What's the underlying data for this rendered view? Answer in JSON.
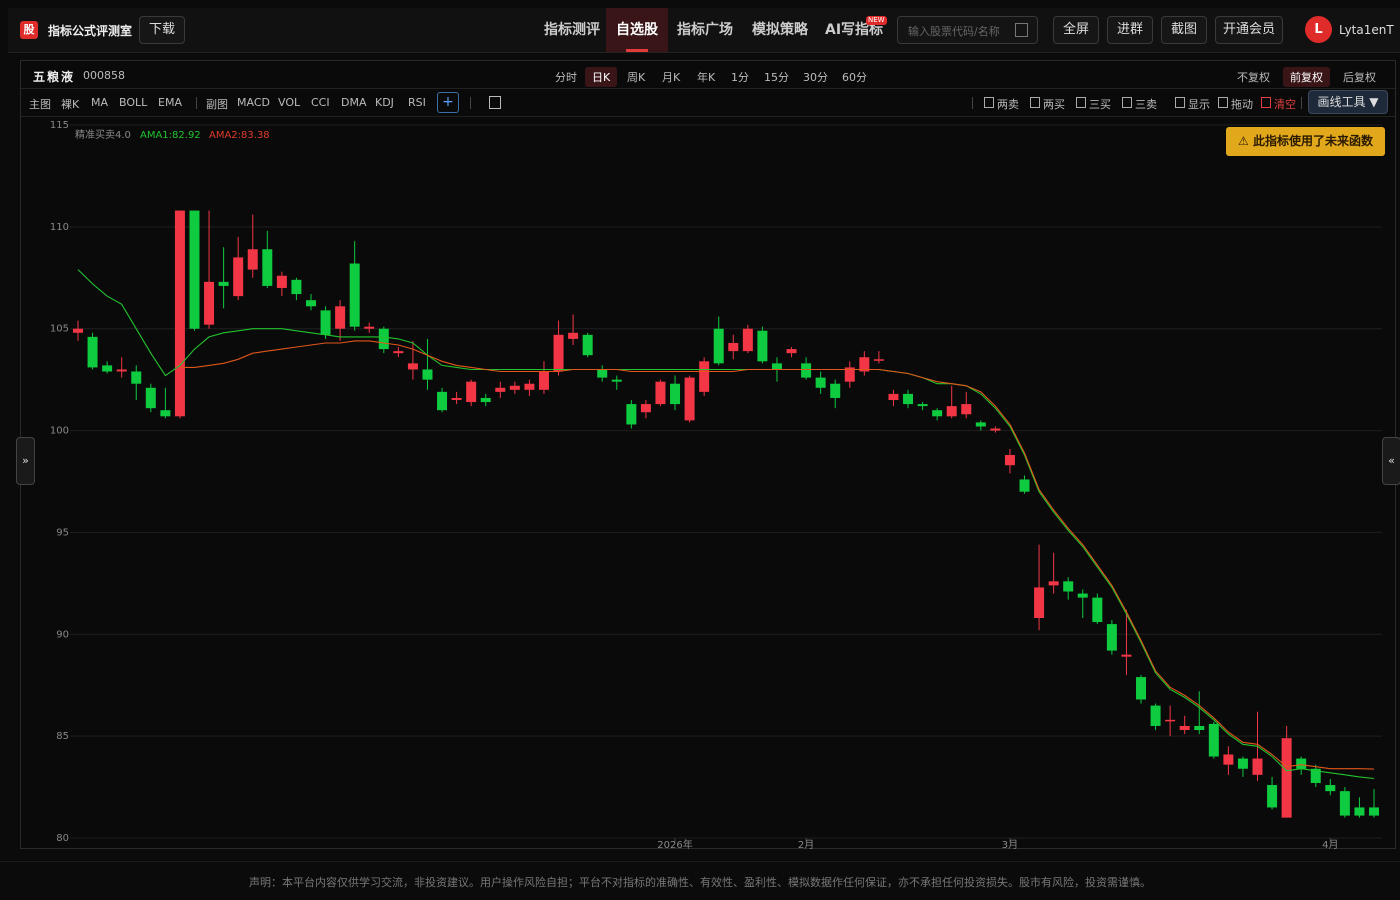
{
  "header": {
    "logo": "股",
    "title": "指标公式评测室",
    "download": "下载",
    "nav": [
      "指标测评",
      "自选股",
      "指标广场",
      "模拟策略",
      "AI写指标"
    ],
    "active_nav": 1,
    "badge": "NEW",
    "search_placeholder": "输入股票代码/名称",
    "buttons": [
      "全屏",
      "进群",
      "截图",
      "开通会员"
    ],
    "avatar": "L",
    "username": "Lyta1enT"
  },
  "stock": {
    "name": "五粮液",
    "code": "000858",
    "periods": [
      "分时",
      "日K",
      "周K",
      "月K",
      "年K",
      "1分",
      "15分",
      "30分",
      "60分"
    ],
    "active_period": 1,
    "adjust": [
      "不复权",
      "前复权",
      "后复权"
    ],
    "active_adjust": 1
  },
  "toolbar": {
    "main_label": "主图",
    "main": [
      "裸K",
      "MA",
      "BOLL",
      "EMA"
    ],
    "sub_label": "副图",
    "sub": [
      "MACD",
      "VOL",
      "CCI",
      "DMA",
      "KDJ",
      "RSI"
    ],
    "add": "+",
    "signals": [
      "两卖",
      "两买",
      "三买",
      "三卖",
      "显示",
      "拖动",
      "清空"
    ],
    "draw_tool": "画线工具 ▼"
  },
  "warning": "⚠ 此指标使用了未来函数",
  "side_left": "»",
  "side_right": "«",
  "chart_data": {
    "type": "candlestick",
    "indicator": "精准买卖4.0",
    "categories": [
      null,
      null,
      null,
      null,
      null,
      null,
      null,
      null,
      null,
      null,
      null,
      null,
      null,
      null,
      null,
      null,
      null,
      null,
      null,
      null,
      null,
      null,
      null,
      null,
      null,
      null,
      null,
      null,
      null,
      null,
      null,
      null,
      null,
      null,
      null,
      null,
      null,
      null,
      null,
      null,
      null,
      "2026年",
      null,
      null,
      null,
      null,
      null,
      null,
      null,
      null,
      "2月",
      null,
      null,
      null,
      null,
      null,
      null,
      null,
      null,
      null,
      null,
      null,
      null,
      null,
      "3月",
      null,
      null,
      null,
      null,
      null,
      null,
      null,
      null,
      null,
      null,
      null,
      null,
      null,
      null,
      null,
      null,
      null,
      null,
      null,
      null,
      null,
      "4月",
      null,
      null,
      null
    ],
    "open": [
      104.8,
      104.6,
      103.2,
      102.9,
      102.9,
      102.1,
      101.0,
      100.7,
      110.8,
      105.2,
      107.3,
      106.6,
      107.9,
      108.9,
      107.0,
      107.4,
      106.4,
      105.9,
      105.0,
      108.2,
      105.0,
      105.0,
      103.8,
      103.0,
      103.0,
      101.9,
      101.5,
      101.4,
      101.6,
      101.9,
      102.0,
      102.0,
      102.0,
      102.9,
      104.5,
      104.7,
      103.0,
      102.5,
      101.3,
      100.9,
      101.3,
      102.3,
      100.5,
      101.9,
      105.0,
      103.9,
      103.9,
      104.9,
      103.3,
      103.8,
      103.3,
      102.6,
      102.3,
      102.4,
      102.9,
      103.5,
      101.5,
      101.8,
      101.3,
      101.0,
      100.7,
      100.8,
      100.4,
      100.0,
      98.3,
      97.6,
      90.8,
      92.4,
      92.6,
      92.0,
      91.8,
      90.5,
      88.9,
      87.9,
      86.5,
      85.8,
      85.3,
      85.5,
      85.6,
      83.6,
      83.9,
      83.1,
      82.6,
      81.0,
      83.9,
      83.4,
      82.6,
      82.3,
      81.5,
      81.5
    ],
    "high": [
      105.4,
      104.8,
      103.4,
      103.6,
      103.2,
      102.3,
      102.1,
      110.8,
      110.8,
      110.8,
      109.0,
      109.5,
      110.6,
      109.8,
      107.8,
      107.5,
      106.7,
      106.1,
      106.4,
      109.3,
      105.3,
      105.1,
      104.1,
      104.4,
      104.5,
      102.1,
      101.9,
      102.5,
      101.8,
      102.4,
      102.4,
      102.5,
      103.4,
      105.4,
      105.7,
      104.8,
      103.2,
      102.7,
      101.5,
      101.5,
      102.5,
      102.7,
      102.7,
      103.6,
      105.6,
      104.7,
      105.2,
      105.1,
      103.6,
      104.1,
      103.6,
      102.9,
      102.5,
      103.4,
      103.9,
      103.9,
      102.0,
      102.0,
      101.4,
      101.1,
      102.2,
      101.9,
      100.5,
      100.2,
      99.1,
      97.8,
      94.4,
      94.0,
      92.8,
      92.2,
      92.0,
      90.7,
      91.2,
      88.0,
      86.6,
      86.5,
      86.0,
      87.2,
      85.7,
      84.5,
      84.0,
      86.2,
      83.0,
      85.5,
      84.0,
      83.6,
      82.9,
      82.5,
      82.0,
      82.4
    ],
    "low": [
      104.4,
      103.0,
      102.8,
      102.6,
      101.5,
      100.9,
      100.6,
      100.6,
      104.9,
      105.0,
      106.0,
      106.4,
      107.5,
      107.0,
      106.6,
      106.4,
      105.9,
      104.5,
      104.4,
      104.9,
      104.8,
      103.8,
      103.6,
      102.5,
      102.0,
      100.9,
      101.3,
      101.2,
      101.2,
      101.6,
      101.8,
      101.7,
      101.8,
      102.7,
      104.2,
      103.6,
      102.4,
      102.0,
      100.1,
      100.6,
      101.2,
      101.0,
      100.4,
      101.7,
      103.2,
      103.5,
      103.8,
      103.3,
      102.4,
      103.6,
      102.5,
      101.8,
      101.1,
      102.1,
      102.7,
      103.3,
      101.2,
      101.1,
      101.0,
      100.5,
      100.6,
      100.6,
      100.0,
      99.9,
      97.9,
      96.9,
      90.2,
      92.0,
      91.7,
      90.8,
      90.5,
      89.0,
      88.0,
      86.6,
      85.3,
      85.0,
      85.1,
      85.1,
      83.9,
      83.1,
      83.0,
      82.8,
      81.4,
      81.0,
      83.1,
      82.5,
      82.1,
      81.0,
      81.0,
      81.0
    ],
    "close": [
      105.0,
      103.1,
      102.9,
      103.0,
      102.3,
      101.1,
      100.7,
      110.8,
      105.0,
      107.3,
      107.1,
      108.5,
      108.9,
      107.1,
      107.6,
      106.7,
      106.1,
      104.7,
      106.1,
      105.1,
      105.1,
      104.0,
      103.9,
      103.3,
      102.5,
      101.0,
      101.6,
      102.4,
      101.4,
      102.1,
      102.2,
      102.3,
      102.9,
      104.7,
      104.8,
      103.7,
      102.6,
      102.4,
      100.3,
      101.3,
      102.4,
      101.3,
      102.6,
      103.4,
      103.3,
      104.3,
      105.0,
      103.4,
      103.0,
      104.0,
      102.6,
      102.1,
      101.6,
      103.1,
      103.6,
      103.5,
      101.8,
      101.3,
      101.2,
      100.7,
      101.2,
      101.3,
      100.2,
      100.1,
      98.8,
      97.0,
      92.3,
      92.6,
      92.1,
      91.8,
      90.6,
      89.2,
      89.0,
      86.8,
      85.5,
      85.8,
      85.5,
      85.3,
      84.0,
      84.1,
      83.4,
      83.9,
      81.5,
      84.9,
      83.4,
      82.7,
      82.3,
      81.1,
      81.1,
      81.1
    ],
    "up_color": "#f23645",
    "down_color": "#0ecb3f",
    "ylim": [
      80,
      115
    ],
    "yticks": [
      80,
      85,
      90,
      95,
      100,
      105,
      110,
      115
    ],
    "grid": true,
    "series": [
      {
        "name": "AMA1:82.92",
        "color": "#22c32e",
        "values": [
          107.9,
          107.2,
          106.6,
          106.2,
          105.0,
          103.8,
          102.7,
          103.2,
          104.0,
          104.6,
          104.8,
          104.9,
          105.0,
          105.0,
          105.0,
          104.9,
          104.8,
          104.7,
          104.6,
          104.6,
          104.6,
          104.6,
          104.5,
          104.3,
          103.7,
          103.2,
          103.1,
          103.0,
          103.0,
          103.0,
          103.0,
          103.0,
          103.0,
          103.0,
          103.0,
          103.0,
          103.0,
          103.0,
          103.0,
          103.0,
          103.0,
          103.0,
          103.0,
          103.0,
          103.0,
          103.0,
          103.0,
          103.0,
          103.0,
          103.0,
          103.0,
          103.0,
          103.0,
          103.0,
          103.0,
          103.0,
          102.9,
          102.8,
          102.6,
          102.3,
          102.3,
          102.2,
          101.8,
          101.1,
          100.2,
          98.8,
          97.0,
          96.0,
          95.1,
          94.3,
          93.3,
          92.3,
          91.0,
          89.6,
          88.1,
          87.3,
          86.9,
          86.4,
          85.8,
          85.1,
          84.6,
          84.5,
          84.0,
          83.3,
          83.4,
          83.3,
          83.2,
          83.1,
          83.0,
          82.92
        ]
      },
      {
        "name": "AMA2:83.38",
        "color": "#e0561a",
        "values": [
          null,
          null,
          null,
          null,
          null,
          null,
          null,
          103.1,
          103.1,
          103.2,
          103.3,
          103.5,
          103.8,
          103.9,
          104.0,
          104.1,
          104.2,
          104.3,
          104.3,
          104.4,
          104.4,
          104.3,
          104.2,
          104.0,
          103.7,
          103.4,
          103.2,
          103.1,
          103.0,
          102.9,
          102.9,
          102.9,
          102.9,
          102.9,
          103.0,
          103.0,
          103.0,
          103.0,
          102.9,
          102.9,
          102.9,
          102.9,
          102.9,
          102.9,
          102.9,
          102.9,
          103.0,
          103.0,
          103.0,
          103.0,
          103.0,
          103.0,
          103.0,
          103.0,
          103.0,
          103.0,
          102.9,
          102.8,
          102.6,
          102.4,
          102.3,
          102.2,
          101.9,
          101.2,
          100.3,
          98.9,
          97.1,
          96.1,
          95.2,
          94.4,
          93.4,
          92.4,
          91.1,
          89.7,
          88.2,
          87.4,
          87.0,
          86.5,
          85.9,
          85.2,
          84.7,
          84.6,
          84.1,
          83.5,
          83.6,
          83.5,
          83.4,
          83.4,
          83.4,
          83.38
        ]
      }
    ]
  },
  "footer": "声明：本平台内容仅供学习交流，非投资建议。用户操作风险自担；平台不对指标的准确性、有效性、盈利性、模拟数据作任何保证，亦不承担任何投资损失。股市有风险，投资需谨慎。"
}
